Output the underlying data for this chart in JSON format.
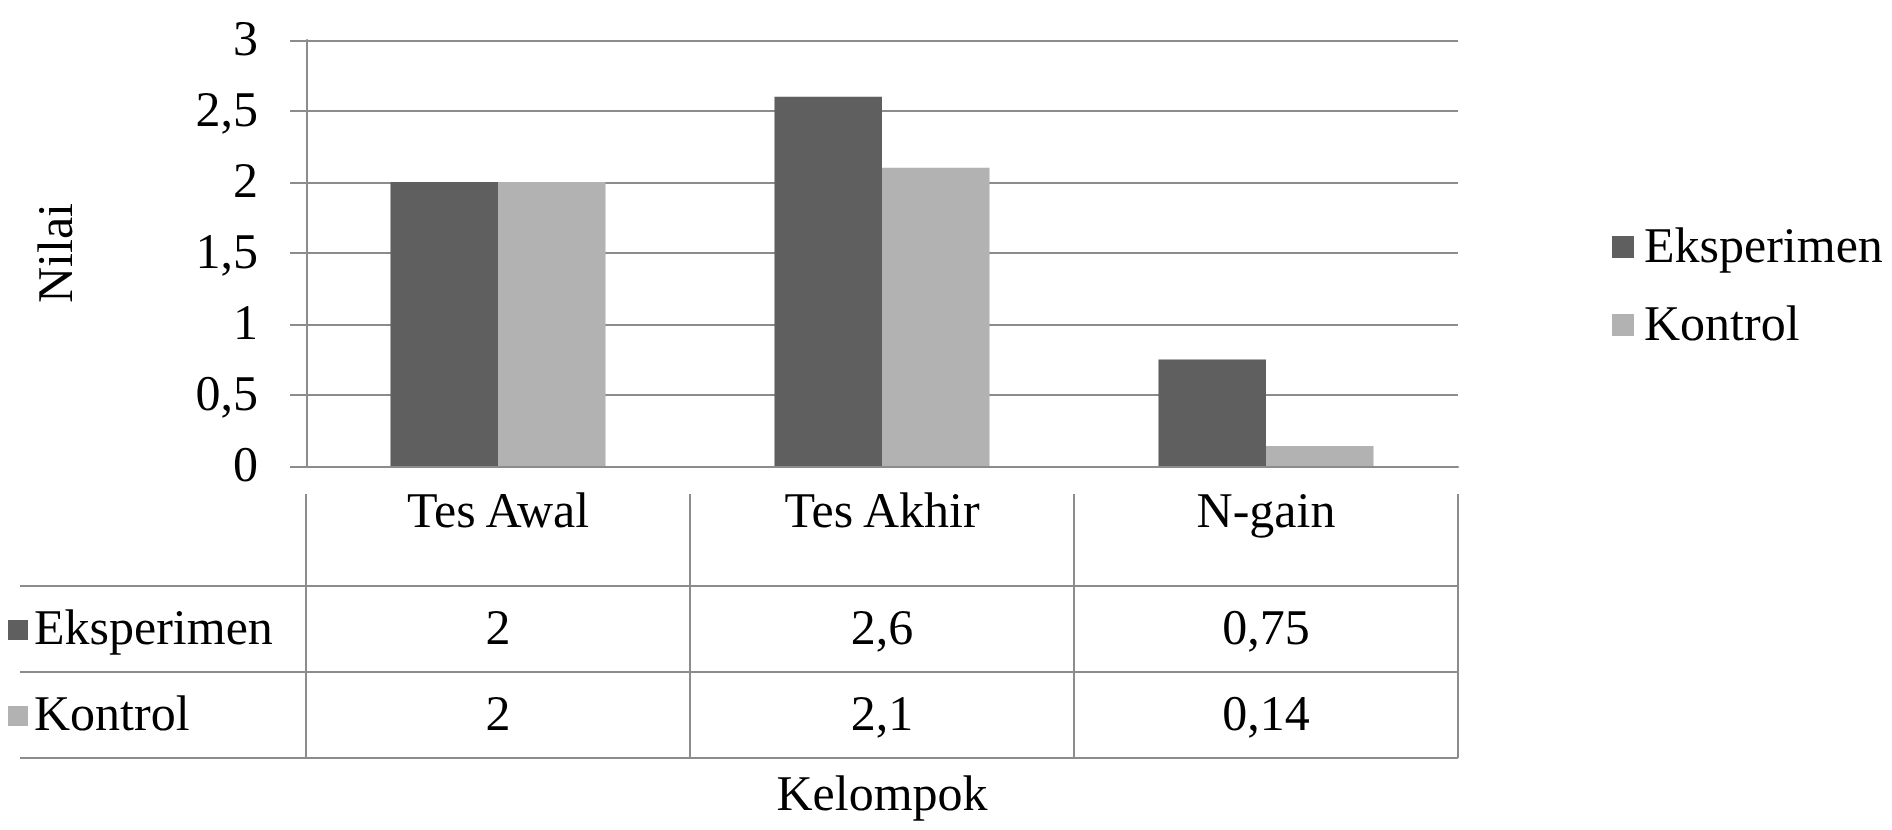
{
  "chart_data": {
    "type": "bar",
    "xlabel": "Kelompok",
    "ylabel": "Nilai",
    "categories": [
      "Tes Awal",
      "Tes Akhir",
      "N-gain"
    ],
    "series": [
      {
        "name": "Eksperimen",
        "color": "#5f5f5f",
        "values": [
          2,
          2.6,
          0.75
        ],
        "value_labels": [
          "2",
          "2,6",
          "0,75"
        ]
      },
      {
        "name": "Kontrol",
        "color": "#b2b2b2",
        "values": [
          2,
          2.1,
          0.14
        ],
        "value_labels": [
          "2",
          "2,1",
          "0,14"
        ]
      }
    ],
    "ylim": [
      0,
      3
    ],
    "yticks": [
      0,
      {
        "value": 0.5,
        "label": "0,5"
      },
      1,
      {
        "value": 1.5,
        "label": "1,5"
      },
      2,
      {
        "value": 2.5,
        "label": "2,5"
      },
      3
    ],
    "grid": "y",
    "legend": "right"
  }
}
